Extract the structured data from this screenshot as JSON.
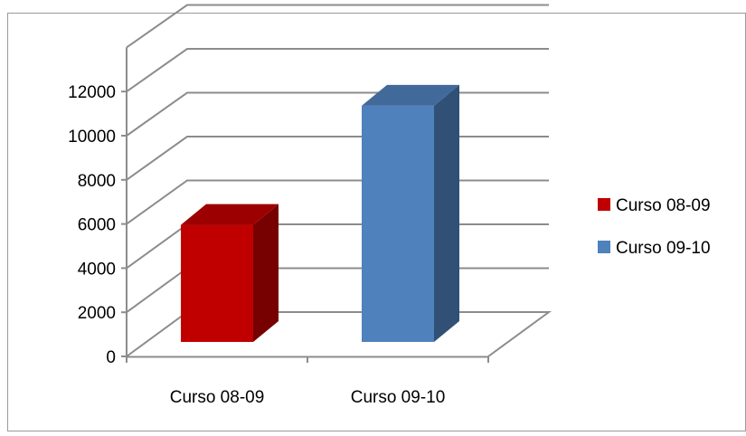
{
  "chart_data": {
    "type": "bar",
    "title": "",
    "xlabel": "",
    "ylabel": "",
    "categories": [
      "Curso 08-09",
      "Curso 09-10"
    ],
    "ylim": [
      0,
      12000
    ],
    "yticks": [
      0,
      2000,
      4000,
      6000,
      8000,
      10000,
      12000
    ],
    "grid": true,
    "three_d": true,
    "legend_position": "right",
    "series": [
      {
        "name": "Curso 08-09",
        "category": "Curso 08-09",
        "value": 5300,
        "color": "#c00000"
      },
      {
        "name": "Curso 09-10",
        "category": "Curso 09-10",
        "value": 10700,
        "color": "#4f81bd"
      }
    ]
  }
}
